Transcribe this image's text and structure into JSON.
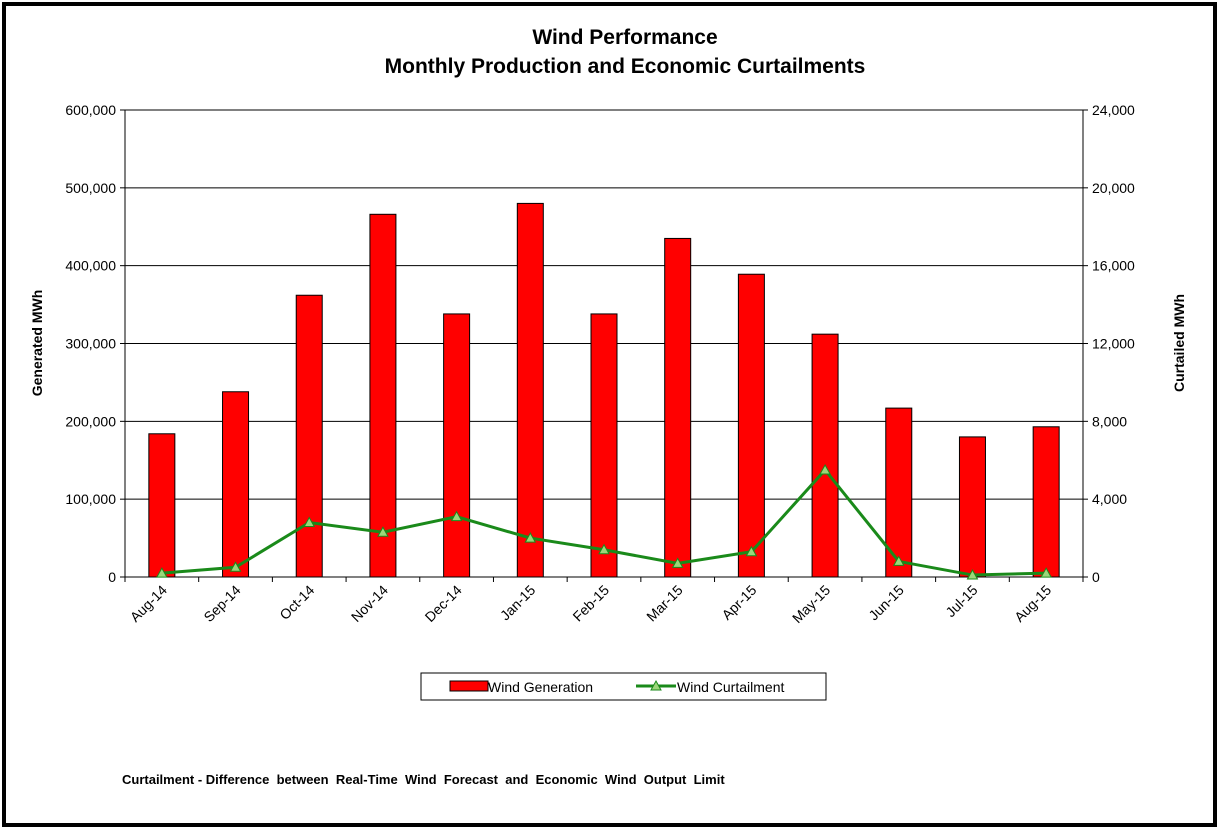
{
  "chart_data": {
    "type": "bar_line",
    "title": "Wind Performance",
    "subtitle": "Monthly Production and Economic Curtailments",
    "ylabel": "Generated MWh",
    "y2label": "Curtailed MWh",
    "annotation": "Curtailment - Difference  between  Real-Time  Wind  Forecast  and  Economic  Wind  Output  Limit",
    "categories": [
      "Aug-14",
      "Sep-14",
      "Oct-14",
      "Nov-14",
      "Dec-14",
      "Jan-15",
      "Feb-15",
      "Mar-15",
      "Apr-15",
      "May-15",
      "Jun-15",
      "Jul-15",
      "Aug-15"
    ],
    "series": [
      {
        "name": "Wind Generation",
        "color": "#ff0000",
        "type": "bar",
        "values": [
          184000,
          238000,
          362000,
          466000,
          338000,
          480000,
          338000,
          435000,
          389000,
          312000,
          217000,
          180000,
          193000
        ]
      },
      {
        "name": "Wind Curtailment",
        "color": "#1a8a1a",
        "type": "line",
        "axis": "y2",
        "values": [
          200,
          500,
          2800,
          2300,
          3100,
          2000,
          1400,
          700,
          1300,
          5500,
          800,
          100,
          200
        ]
      }
    ],
    "ylim": [
      0,
      600000
    ],
    "yticks": [
      0,
      {
        "value": 100000,
        "label": "100,000"
      },
      {
        "value": 200000,
        "label": "200,000"
      },
      {
        "value": 300000,
        "label": "300,000"
      },
      {
        "value": 400000,
        "label": "400,000"
      },
      {
        "value": 500000,
        "label": "500,000"
      },
      {
        "value": 600000,
        "label": "600,000"
      }
    ],
    "y2lim": [
      0,
      24000
    ],
    "y2ticks": [
      0,
      {
        "value": 4000,
        "label": "4,000"
      },
      {
        "value": 8000,
        "label": "8,000"
      },
      {
        "value": 12000,
        "label": "12,000"
      },
      {
        "value": 16000,
        "label": "16,000"
      },
      {
        "value": 20000,
        "label": "20,000"
      },
      {
        "value": 24000,
        "label": "24,000"
      }
    ],
    "grid": true
  }
}
